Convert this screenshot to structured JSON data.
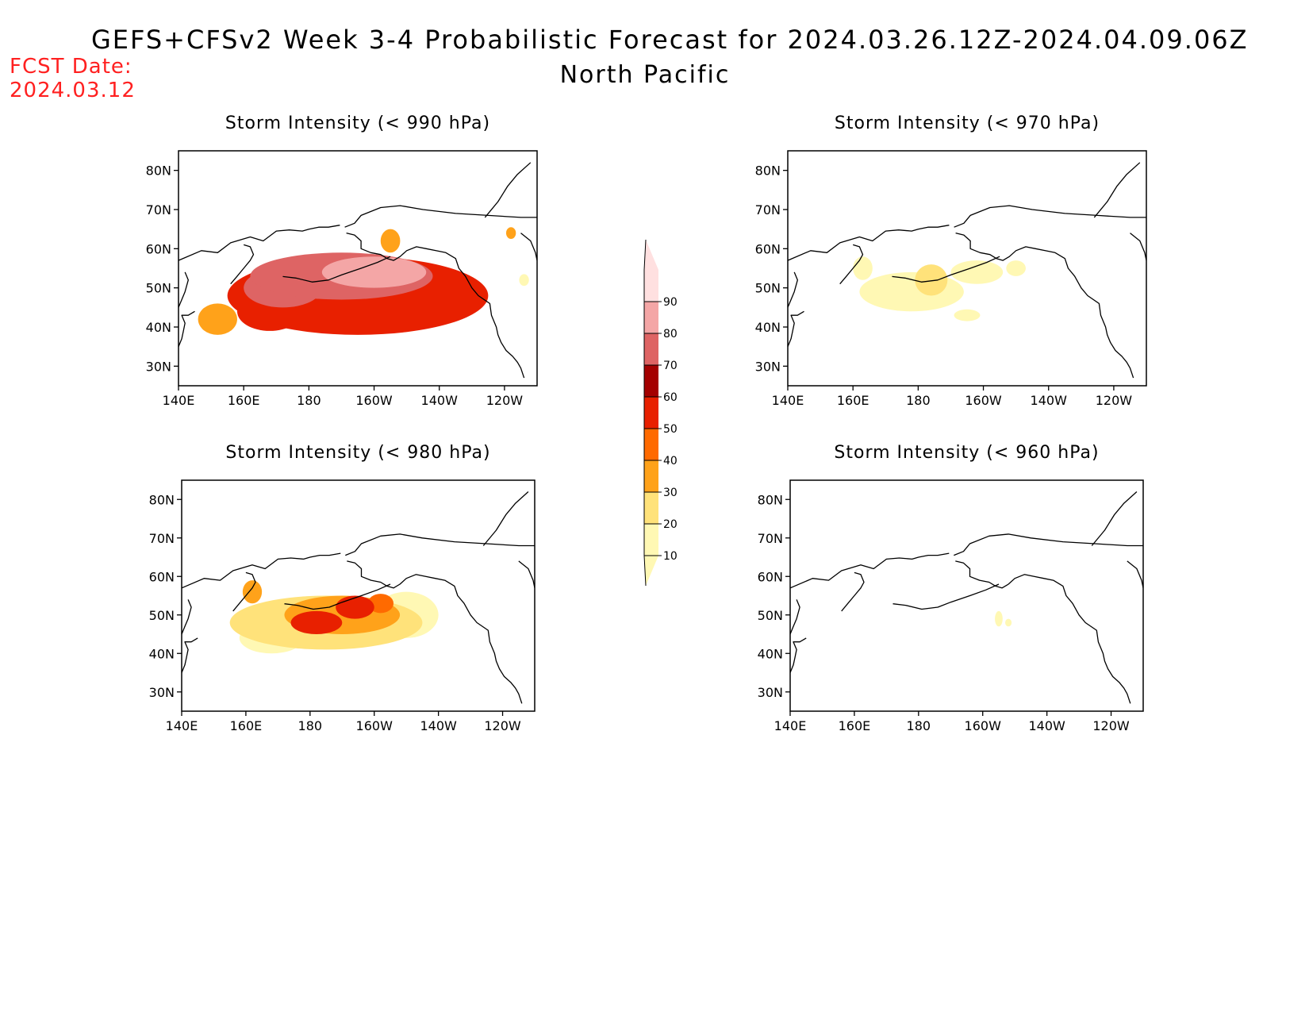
{
  "header": {
    "title": "GEFS+CFSv2 Week 3-4 Probabilistic Forecast for 2024.03.26.12Z-2024.04.09.06Z",
    "subtitle": "North Pacific",
    "fcst_label": "FCST Date:",
    "fcst_date": "2024.03.12"
  },
  "chart_data": {
    "type": "heatmap",
    "lon_ticks": [
      "140E",
      "160E",
      "180",
      "160W",
      "140W",
      "120W"
    ],
    "lat_ticks": [
      "30N",
      "40N",
      "50N",
      "60N",
      "70N",
      "80N"
    ],
    "lon_range_deg_east": [
      140,
      250
    ],
    "lat_range_deg_north": [
      25,
      85
    ],
    "colorbar": {
      "levels": [
        10,
        20,
        30,
        40,
        50,
        60,
        70,
        80,
        90
      ],
      "colors": [
        "#fff8b4",
        "#ffe27a",
        "#ffa21a",
        "#ff6a00",
        "#e82000",
        "#a40000",
        "#de6464",
        "#f4a6a6",
        "#ffe0e0"
      ]
    },
    "panels": [
      {
        "id": "p990",
        "title": "Storm Intensity (< 990 hPa)",
        "blobs": [
          {
            "lon": 195,
            "lat": 48,
            "rlon": 40,
            "rlat": 10,
            "v": 55
          },
          {
            "lon": 190,
            "lat": 53,
            "rlon": 28,
            "rlat": 6,
            "v": 72
          },
          {
            "lon": 200,
            "lat": 54,
            "rlon": 16,
            "rlat": 4,
            "v": 84
          },
          {
            "lon": 172,
            "lat": 50,
            "rlon": 12,
            "rlat": 5,
            "v": 70
          },
          {
            "lon": 168,
            "lat": 44,
            "rlon": 10,
            "rlat": 5,
            "v": 55
          },
          {
            "lon": 215,
            "lat": 48,
            "rlon": 12,
            "rlat": 6,
            "v": 45
          },
          {
            "lon": 222,
            "lat": 45,
            "rlon": 6,
            "rlat": 4,
            "v": 35
          },
          {
            "lon": 152,
            "lat": 42,
            "rlon": 6,
            "rlat": 4,
            "v": 35
          },
          {
            "lon": 205,
            "lat": 62,
            "rlon": 3,
            "rlat": 3,
            "v": 35
          },
          {
            "lon": 242,
            "lat": 64,
            "rlon": 1.5,
            "rlat": 1.5,
            "v": 30
          },
          {
            "lon": 246,
            "lat": 52,
            "rlon": 1.5,
            "rlat": 1.5,
            "v": 15
          }
        ]
      },
      {
        "id": "p970",
        "title": "Storm Intensity (< 970 hPa)",
        "blobs": [
          {
            "lon": 178,
            "lat": 49,
            "rlon": 16,
            "rlat": 5,
            "v": 15
          },
          {
            "lon": 184,
            "lat": 52,
            "rlon": 5,
            "rlat": 4,
            "v": 22
          },
          {
            "lon": 163,
            "lat": 55,
            "rlon": 3,
            "rlat": 3,
            "v": 18
          },
          {
            "lon": 198,
            "lat": 54,
            "rlon": 8,
            "rlat": 3,
            "v": 13
          },
          {
            "lon": 210,
            "lat": 55,
            "rlon": 3,
            "rlat": 2,
            "v": 12
          },
          {
            "lon": 195,
            "lat": 43,
            "rlon": 4,
            "rlat": 1.5,
            "v": 12
          }
        ]
      },
      {
        "id": "p980",
        "title": "Storm Intensity (< 980 hPa)",
        "blobs": [
          {
            "lon": 185,
            "lat": 48,
            "rlon": 30,
            "rlat": 7,
            "v": 25
          },
          {
            "lon": 190,
            "lat": 50,
            "rlon": 18,
            "rlat": 5,
            "v": 38
          },
          {
            "lon": 182,
            "lat": 48,
            "rlon": 8,
            "rlat": 3,
            "v": 55
          },
          {
            "lon": 194,
            "lat": 52,
            "rlon": 6,
            "rlat": 3,
            "v": 52
          },
          {
            "lon": 202,
            "lat": 53,
            "rlon": 4,
            "rlat": 2.5,
            "v": 48
          },
          {
            "lon": 162,
            "lat": 56,
            "rlon": 3,
            "rlat": 3,
            "v": 35
          },
          {
            "lon": 210,
            "lat": 50,
            "rlon": 10,
            "rlat": 6,
            "v": 15
          },
          {
            "lon": 168,
            "lat": 44,
            "rlon": 10,
            "rlat": 4,
            "v": 15
          }
        ]
      },
      {
        "id": "p960",
        "title": "Storm Intensity (< 960 hPa)",
        "blobs": [
          {
            "lon": 205,
            "lat": 49,
            "rlon": 1.2,
            "rlat": 2,
            "v": 12
          },
          {
            "lon": 208,
            "lat": 48,
            "rlon": 1,
            "rlat": 1,
            "v": 12
          }
        ]
      }
    ]
  }
}
